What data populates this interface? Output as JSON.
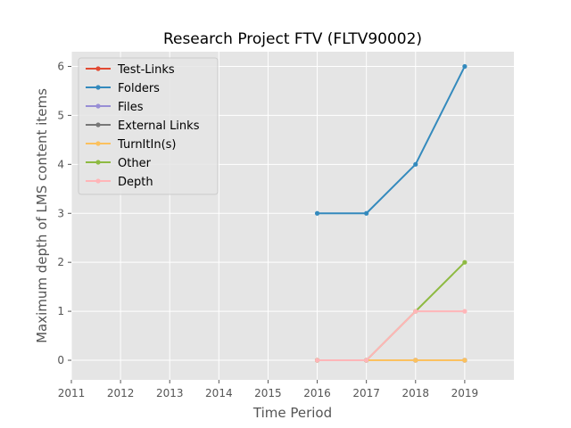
{
  "chart_data": {
    "type": "line",
    "title": "Research Project FTV (FLTV90002)",
    "xlabel": "Time Period",
    "ylabel": "Maximum depth of LMS content items",
    "xlim": [
      2011,
      2020
    ],
    "ylim": [
      -0.4,
      6.3
    ],
    "xticks": [
      2011,
      2012,
      2013,
      2014,
      2015,
      2016,
      2017,
      2018,
      2019
    ],
    "yticks": [
      0,
      1,
      2,
      3,
      4,
      5,
      6
    ],
    "grid": true,
    "legend_position": "upper-left",
    "x": [
      2016,
      2017,
      2018,
      2019
    ],
    "series": [
      {
        "name": "Test-Links",
        "color": "#E24A33",
        "values": [
          0,
          0,
          0,
          0
        ]
      },
      {
        "name": "Folders",
        "color": "#348ABD",
        "values": [
          3,
          3,
          4,
          6
        ]
      },
      {
        "name": "Files",
        "color": "#988ED5",
        "values": [
          0,
          0,
          0,
          0
        ]
      },
      {
        "name": "External Links",
        "color": "#777777",
        "values": [
          0,
          0,
          0,
          0
        ]
      },
      {
        "name": "TurnItIn(s)",
        "color": "#FBC15E",
        "values": [
          0,
          0,
          0,
          0
        ]
      },
      {
        "name": "Other",
        "color": "#8EBA42",
        "values": [
          0,
          0,
          1,
          2
        ]
      },
      {
        "name": "Depth",
        "color": "#FFB5B8",
        "values": [
          0,
          0,
          1,
          1
        ]
      }
    ]
  }
}
